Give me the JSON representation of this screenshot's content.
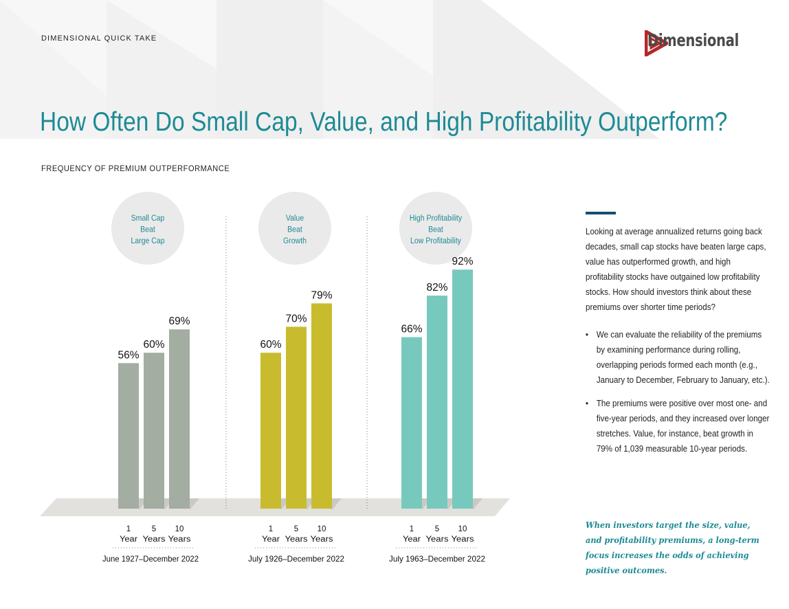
{
  "header": {
    "kicker": "DIMENSIONAL QUICK TAKE",
    "title": "How Often Do Small Cap, Value, and High Profitability Outperform?",
    "logo_text": "Dimensional",
    "logo_color": "#b6272a",
    "title_color": "#1d8a94"
  },
  "chart_heading": "FREQUENCY OF PREMIUM OUTPERFORMANCE",
  "chart_data": {
    "type": "bar",
    "title": "FREQUENCY OF PREMIUM OUTPERFORMANCE",
    "categories": [
      "1 Year",
      "5 Years",
      "10 Years"
    ],
    "ylim": [
      0,
      100
    ],
    "unit": "%",
    "groups": [
      {
        "label_lines": [
          "Small Cap",
          "Beat",
          "Large Cap"
        ],
        "period": "June 1927–December 2022",
        "color": "#a3ada2",
        "values": [
          56,
          60,
          69
        ],
        "value_labels": [
          "56%",
          "60%",
          "69%"
        ]
      },
      {
        "label_lines": [
          "Value",
          "Beat",
          "Growth"
        ],
        "period": "July 1926–December 2022",
        "color": "#c8bc2e",
        "values": [
          60,
          70,
          79
        ],
        "value_labels": [
          "60%",
          "70%",
          "79%"
        ]
      },
      {
        "label_lines": [
          "High Profitability",
          "Beat",
          "Low Profitability"
        ],
        "period": "July 1963–December 2022",
        "color": "#78c9bd",
        "values": [
          66,
          82,
          92
        ],
        "value_labels": [
          "66%",
          "82%",
          "92%"
        ]
      }
    ],
    "x_labels": [
      {
        "num": "1",
        "unit": "Year"
      },
      {
        "num": "5",
        "unit": "Years"
      },
      {
        "num": "10",
        "unit": "Years"
      }
    ]
  },
  "sidebar": {
    "intro": "Looking at average annualized returns going back decades, small cap stocks have beaten large caps, value has outperformed growth, and high profitability stocks have outgained low profitability stocks. How should investors think about these premiums over shorter time periods?",
    "bullets": [
      "We can evaluate the reliability of the premiums by examining performance during rolling, overlapping periods formed each month (e.g., January to December, February to January, etc.).",
      "The premiums were positive over most one- and five-year periods, and they increased over longer stretches. Value, for instance, beat growth in 79% of 1,039 measurable 10-year periods."
    ],
    "bullet_glyph": "•",
    "quote": "When investors target the size, value, and profitability premiums, a long-term focus increases the odds of achieving positive outcomes."
  }
}
